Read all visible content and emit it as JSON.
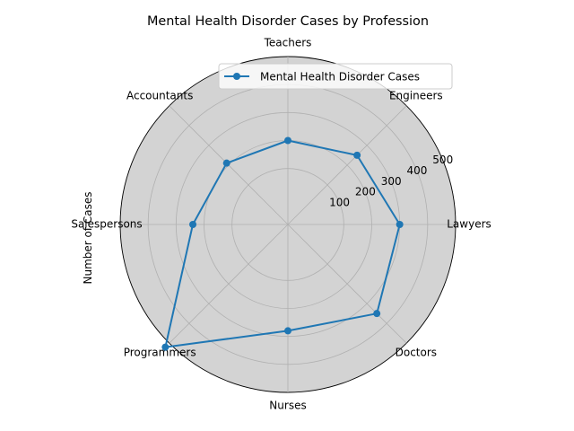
{
  "chart_data": {
    "type": "radar",
    "title": "Mental Health Disorder Cases by Profession",
    "ylabel": "Number of Cases",
    "categories": [
      "Lawyers",
      "Engineers",
      "Teachers",
      "Accountants",
      "Salespersons",
      "Programmers",
      "Nurses",
      "Doctors"
    ],
    "series": [
      {
        "name": "Mental Health Disorder Cases",
        "values": [
          300,
          250,
          200,
          210,
          240,
          520,
          280,
          350
        ],
        "color": "#1f77b4"
      }
    ],
    "rlim": [
      -100,
      500
    ],
    "r_ticks": [
      100,
      200,
      300,
      400,
      500
    ],
    "grid": true,
    "legend_position": "top-right",
    "background_color": "#d3d3d3"
  }
}
